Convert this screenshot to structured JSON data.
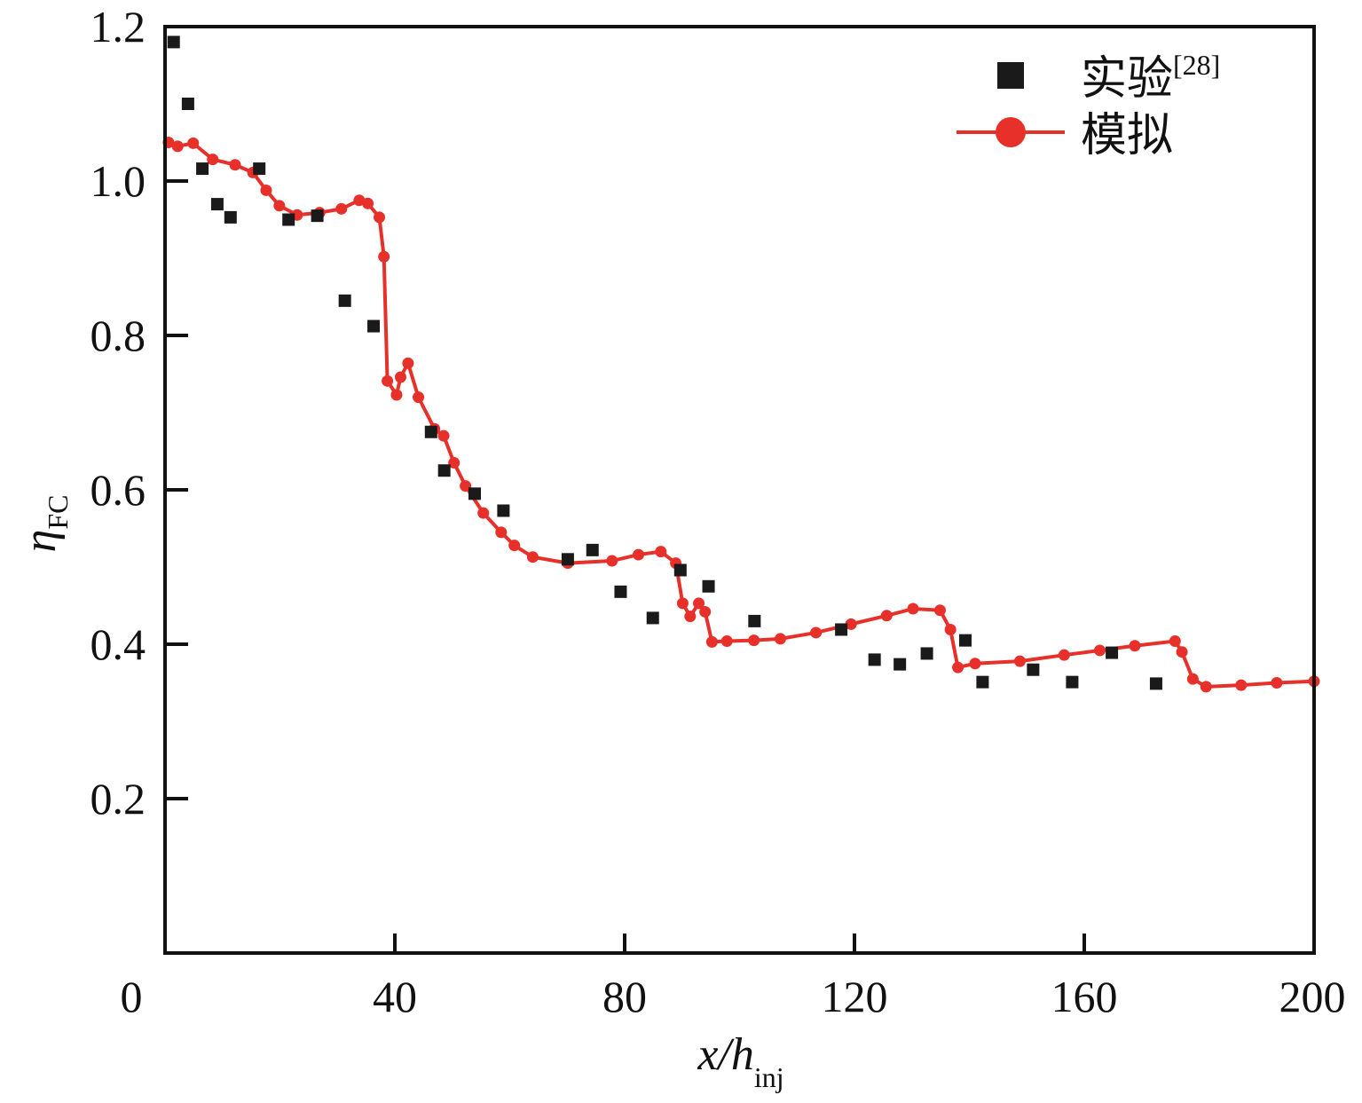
{
  "chart_data": {
    "type": "scatter",
    "title": "",
    "xlabel": {
      "main": "x/h",
      "sub": "inj"
    },
    "ylabel": {
      "main": "η",
      "sub": "FC"
    },
    "xlim": [
      0,
      200
    ],
    "ylim": [
      0,
      1.2
    ],
    "xticks": [
      0,
      40,
      80,
      120,
      160,
      200
    ],
    "xtick_labels": [
      "0",
      "40",
      "80",
      "120",
      "160",
      "200"
    ],
    "yticks": [
      0.2,
      0.4,
      0.6,
      0.8,
      1.0,
      1.2
    ],
    "ytick_labels": [
      "0.2",
      "0.4",
      "0.6",
      "0.8",
      "1.0",
      "1.2"
    ],
    "grid": false,
    "legend_position": "top-right",
    "series": [
      {
        "name": "实验",
        "ref": "[28]",
        "type": "scatter",
        "marker": "square",
        "color": "#1a1a1a",
        "x": [
          1.5,
          4.0,
          6.5,
          9.1,
          11.4,
          16.4,
          21.5,
          26.5,
          31.3,
          36.3,
          46.3,
          48.6,
          53.9,
          58.9,
          70.1,
          74.4,
          79.3,
          84.9,
          89.7,
          94.6,
          102.6,
          117.7,
          123.5,
          127.9,
          132.6,
          139.3,
          142.3,
          151.1,
          157.9,
          164.8,
          172.5
        ],
        "y": [
          1.18,
          1.1,
          1.016,
          0.97,
          0.953,
          1.016,
          0.95,
          0.955,
          0.845,
          0.812,
          0.675,
          0.625,
          0.595,
          0.573,
          0.51,
          0.522,
          0.468,
          0.434,
          0.496,
          0.475,
          0.43,
          0.419,
          0.38,
          0.374,
          0.388,
          0.405,
          0.351,
          0.367,
          0.351,
          0.389,
          0.349
        ]
      },
      {
        "name": "模拟",
        "type": "line",
        "marker": "circle",
        "color": "#e8302a",
        "x": [
          0.6,
          2.2,
          4.9,
          8.3,
          12.2,
          15.3,
          17.6,
          19.9,
          23,
          26.9,
          30.7,
          33.8,
          35.3,
          37.3,
          38.1,
          38.7,
          40.3,
          41.0,
          42.3,
          44.1,
          46.9,
          48.5,
          50.3,
          52.3,
          55.4,
          58.5,
          60.8,
          64,
          70.1,
          77.8,
          82.4,
          86.3,
          88.9,
          90.1,
          91.4,
          92.9,
          94,
          95.2,
          97.8,
          102.5,
          107.1,
          113.3,
          119.4,
          125.6,
          130.2,
          134.9,
          136.7,
          138,
          141,
          148.8,
          156.5,
          162.7,
          168.8,
          175.8,
          177,
          178.9,
          181.2,
          187.3,
          193.5,
          200
        ],
        "y": [
          1.05,
          1.045,
          1.049,
          1.028,
          1.021,
          1.011,
          0.988,
          0.968,
          0.956,
          0.959,
          0.964,
          0.975,
          0.971,
          0.953,
          0.902,
          0.741,
          0.723,
          0.746,
          0.764,
          0.72,
          0.679,
          0.67,
          0.635,
          0.605,
          0.57,
          0.545,
          0.528,
          0.513,
          0.505,
          0.508,
          0.516,
          0.52,
          0.505,
          0.453,
          0.436,
          0.453,
          0.442,
          0.403,
          0.404,
          0.405,
          0.407,
          0.415,
          0.426,
          0.437,
          0.446,
          0.444,
          0.419,
          0.37,
          0.375,
          0.378,
          0.386,
          0.392,
          0.398,
          0.404,
          0.39,
          0.355,
          0.345,
          0.347,
          0.35,
          0.352
        ]
      }
    ]
  }
}
